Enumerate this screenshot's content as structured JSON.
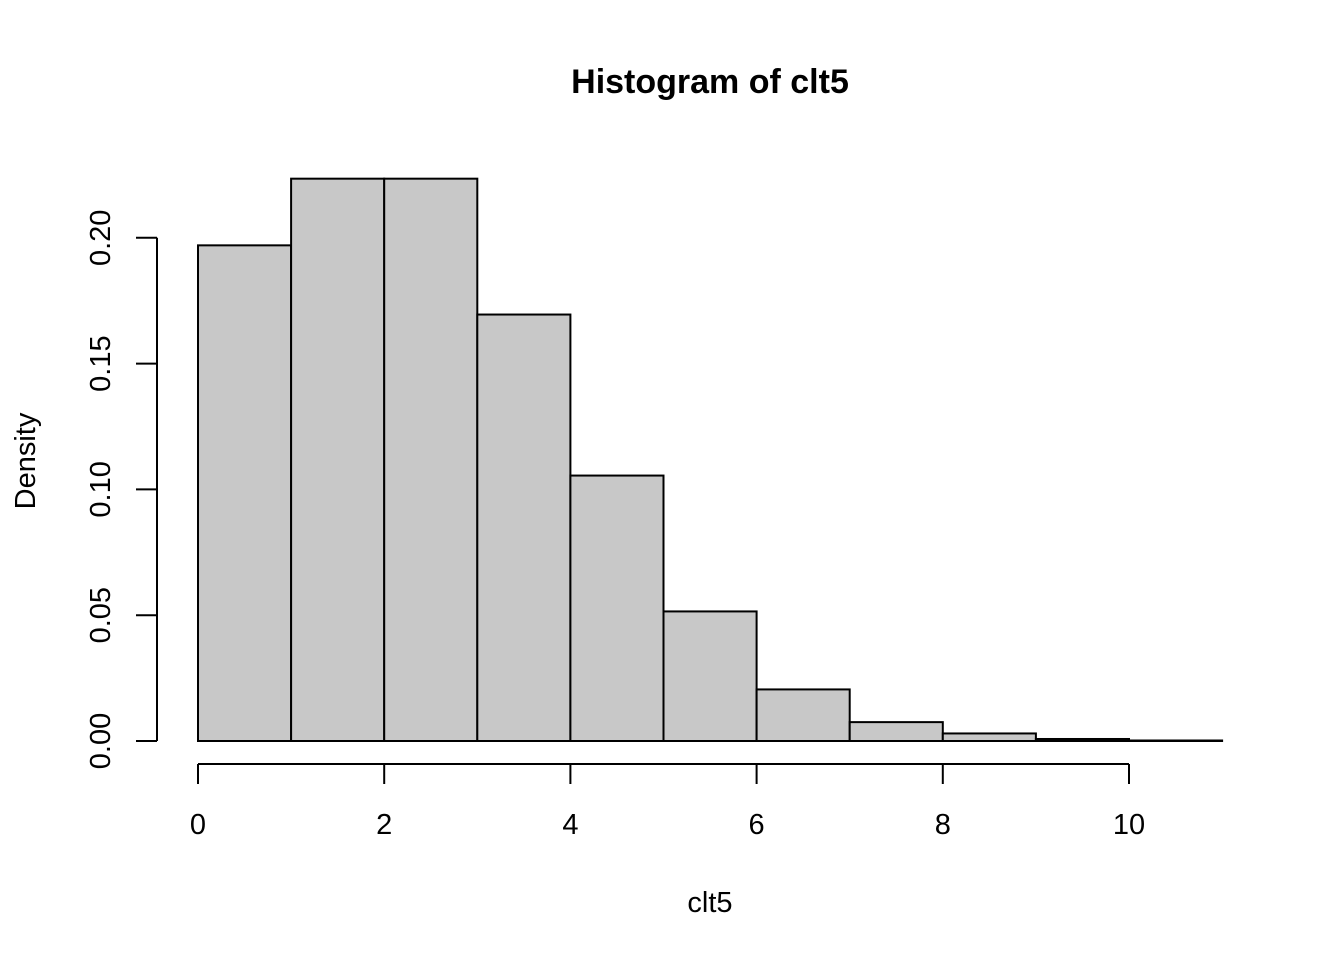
{
  "chart_data": {
    "type": "bar",
    "title": "Histogram of clt5",
    "xlabel": "clt5",
    "ylabel": "Density",
    "bin_edges": [
      0,
      1,
      2,
      3,
      4,
      5,
      6,
      7,
      8,
      9,
      10,
      11
    ],
    "values": [
      0.197,
      0.2235,
      0.2235,
      0.1695,
      0.1055,
      0.0515,
      0.0205,
      0.0075,
      0.003,
      0.0008,
      0.0002
    ],
    "x_ticks": [
      0,
      2,
      4,
      6,
      8,
      10
    ],
    "x_tick_labels": [
      "0",
      "2",
      "4",
      "6",
      "8",
      "10"
    ],
    "y_ticks": [
      0,
      0.05,
      0.1,
      0.15,
      0.2
    ],
    "y_tick_labels": [
      "0.00",
      "0.05",
      "0.10",
      "0.15",
      "0.20"
    ],
    "xlim": [
      0,
      11
    ],
    "ylim": [
      0,
      0.2235
    ],
    "grid": false,
    "bar_color": "#c8c8c8",
    "edge_color": "#000000"
  }
}
